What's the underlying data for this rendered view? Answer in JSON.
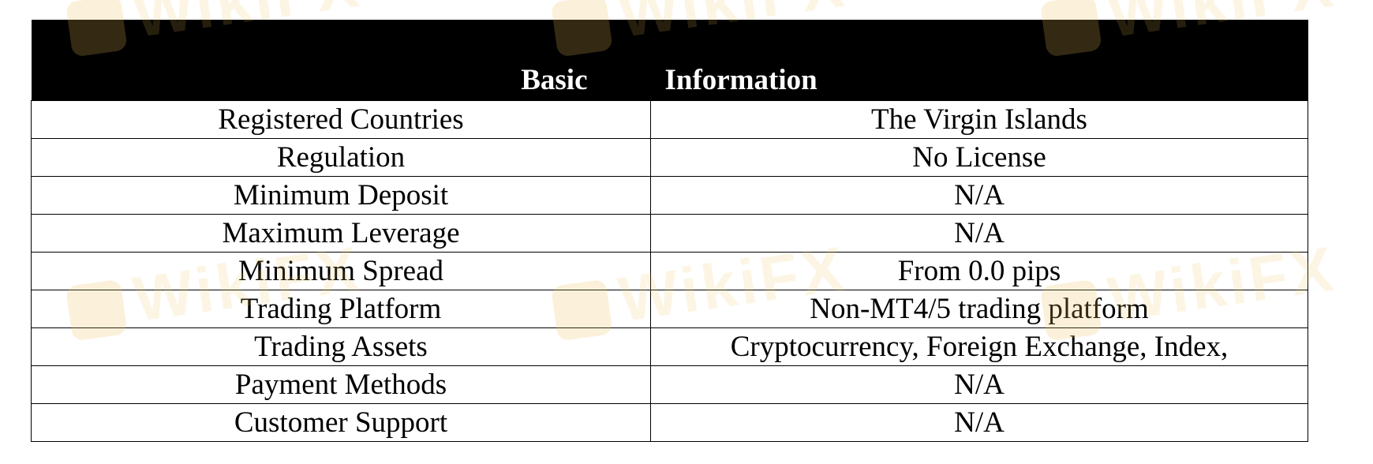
{
  "watermark": "WikiFX",
  "table": {
    "header": [
      "Basic",
      "Information"
    ],
    "rows": [
      {
        "label": "Registered Countries",
        "value": "The Virgin Islands"
      },
      {
        "label": "Regulation",
        "value": "No License"
      },
      {
        "label": "Minimum Deposit",
        "value": "N/A"
      },
      {
        "label": "Maximum Leverage",
        "value": "N/A"
      },
      {
        "label": "Minimum Spread",
        "value": "From 0.0 pips"
      },
      {
        "label": "Trading Platform",
        "value": "Non-MT4/5 trading platform"
      },
      {
        "label": "Trading Assets",
        "value": "Cryptocurrency, Foreign Exchange, Index,"
      },
      {
        "label": "Payment Methods",
        "value": "N/A"
      },
      {
        "label": "Customer Support",
        "value": "N/A"
      }
    ]
  }
}
